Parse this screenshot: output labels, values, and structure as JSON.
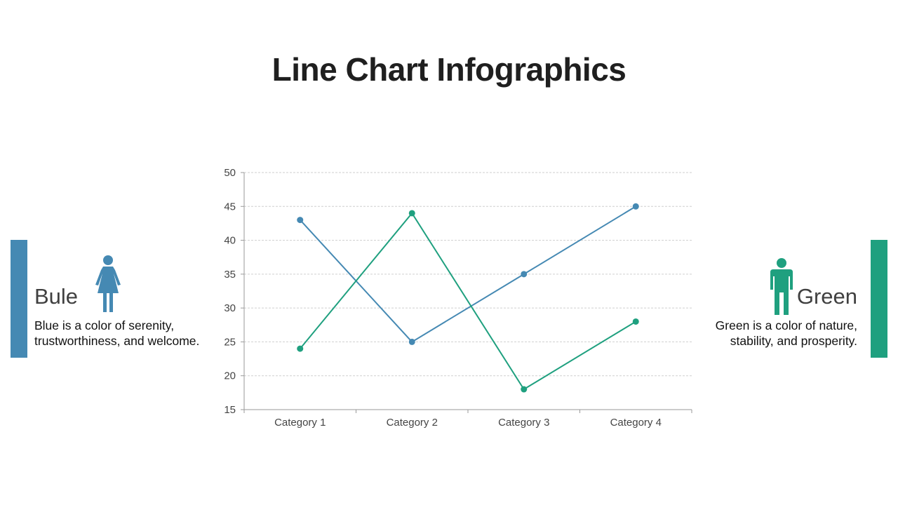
{
  "slide": {
    "title": "Line Chart Infographics"
  },
  "left_panel": {
    "heading": "Bule",
    "description": "Blue is a color of serenity, trustworthiness, and welcome.",
    "icon": "woman-icon",
    "color": "#4589B3"
  },
  "right_panel": {
    "heading": "Green",
    "description": "Green is a color of nature, stability, and prosperity.",
    "icon": "man-icon",
    "color": "#1FA07F"
  },
  "chart_data": {
    "type": "line",
    "title": "",
    "xlabel": "",
    "ylabel": "",
    "categories": [
      "Category 1",
      "Category 2",
      "Category 3",
      "Category 4"
    ],
    "ylim": [
      15,
      50
    ],
    "yticks": [
      15,
      20,
      25,
      30,
      35,
      40,
      45,
      50
    ],
    "grid": true,
    "legend": "none",
    "series": [
      {
        "values": [
          43,
          25,
          35,
          45
        ],
        "color": "#4589B3"
      },
      {
        "values": [
          24,
          44,
          18,
          28
        ],
        "color": "#1FA07F"
      }
    ]
  }
}
